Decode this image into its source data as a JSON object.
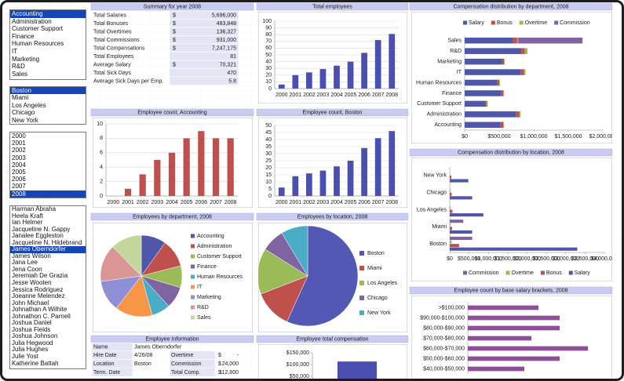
{
  "listboxes": [
    {
      "items": [
        "Accounting",
        "Administration",
        "Customer Support",
        "Finance",
        "Human Resources",
        "IT",
        "Marketing",
        "R&D",
        "Sales"
      ],
      "selected": 0
    },
    {
      "items": [
        "Boston",
        "Miami",
        "Los Angeles",
        "Chicago",
        "New York"
      ],
      "selected": 0
    },
    {
      "items": [
        "2000",
        "2001",
        "2002",
        "2003",
        "2004",
        "2005",
        "2006",
        "2007",
        "2008"
      ],
      "selected": 8
    },
    {
      "items": [
        "Harman Abraha",
        "Heela Kraft",
        "Ian Helmer",
        "Jacqueline N. Gappy",
        "Janalee Eggleston",
        "Jacqueline N. Hildebrand",
        "James Oberndorfer",
        "James Wilson",
        "Jana Lee",
        "Jena Coon",
        "Jeremiah De Grazia",
        "Jesse Wooten",
        "Jessica Rodriguez",
        "Joeanne Melendez",
        "John  Michael",
        "Johnathan A Wilhite",
        "Johnathon C. Parnell",
        "Joshua Daniel",
        "Joshua Fields",
        "Joshua Johnson",
        "Julia  Hegwood",
        "Julia Hughes",
        "Julie Yost",
        "Katherine Battah"
      ],
      "selected": 6
    }
  ],
  "summary": {
    "title": "Summary for year 2008",
    "rows": [
      [
        "Total Salaries",
        "$",
        "5,696,000"
      ],
      [
        "Total Bonuses",
        "$",
        "483,848"
      ],
      [
        "Total Overtimes",
        "$",
        "136,327"
      ],
      [
        "Total Commissions",
        "$",
        "931,000"
      ],
      [
        "Total Compensations",
        "$",
        "7,247,175"
      ],
      [
        "Total Employees",
        "81"
      ],
      [
        "Average Salary",
        "$",
        "70,321"
      ],
      [
        "Total Sick Days",
        "470"
      ],
      [
        "Average Sick Days per Emp.",
        "5.8"
      ]
    ]
  },
  "employee_info": {
    "title": "Employee Information",
    "rows": [
      [
        "Name",
        "James Oberndorfer"
      ],
      [
        "Hire Date",
        "4/26/08",
        "Overtime",
        "$",
        "-"
      ],
      [
        "Location",
        "Boston",
        "Commission",
        "$",
        "24,000"
      ],
      [
        "Term. Date",
        "Total Comp.",
        "$",
        "112,800"
      ]
    ]
  },
  "chart_data": [
    {
      "type": "bar",
      "title": "Total employees",
      "categories": [
        "2000",
        "2001",
        "2002",
        "2003",
        "2004",
        "2005",
        "2006",
        "2007",
        "2008"
      ],
      "values": [
        6,
        20,
        24,
        29,
        34,
        40,
        53,
        72,
        81
      ],
      "color": "#4a4fb0",
      "ylim": [
        0,
        100
      ],
      "yticks": [
        0,
        10,
        20,
        30,
        40,
        50,
        60,
        70,
        80,
        90,
        100
      ],
      "grid": true
    },
    {
      "type": "bar",
      "title": "Employee count, Accounting",
      "categories": [
        "2000",
        "2001",
        "2002",
        "2003",
        "2004",
        "2005",
        "2006",
        "2007",
        "2008"
      ],
      "values": [
        0,
        1,
        3,
        5,
        6,
        8,
        9,
        8,
        8
      ],
      "color": "#c0504d",
      "ylim": [
        0,
        10
      ],
      "yticks": [
        0,
        2,
        4,
        6,
        8,
        10
      ],
      "grid": true
    },
    {
      "type": "bar",
      "title": "Employee count, Boston",
      "categories": [
        "2000",
        "2001",
        "2002",
        "2003",
        "2004",
        "2005",
        "2006",
        "2007",
        "2008"
      ],
      "values": [
        6,
        14,
        16,
        18,
        21,
        25,
        34,
        41,
        46
      ],
      "color": "#4a4fb0",
      "ylim": [
        0,
        50
      ],
      "yticks": [
        0,
        5,
        10,
        15,
        20,
        25,
        30,
        35,
        40,
        45,
        50
      ],
      "grid": true
    },
    {
      "type": "bar",
      "horizontal": true,
      "stacked": true,
      "title": "Compensation distribution by department, 2008",
      "categories": [
        "Sales",
        "R&D",
        "Marketing",
        "IT",
        "Human Resources",
        "Finance",
        "Customer Support",
        "Administration",
        "Accounting"
      ],
      "series": [
        {
          "name": "Salary",
          "color": "#4f57a8",
          "values": [
            700000,
            820000,
            540000,
            810000,
            470000,
            530000,
            300000,
            740000,
            520000
          ]
        },
        {
          "name": "Bonus",
          "color": "#c0504d",
          "values": [
            60000,
            50000,
            30000,
            50000,
            30000,
            30000,
            20000,
            50000,
            40000
          ]
        },
        {
          "name": "Overtime",
          "color": "#9bbb59",
          "values": [
            15000,
            40000,
            10000,
            20000,
            10000,
            10000,
            15000,
            20000,
            10000
          ]
        },
        {
          "name": "Commission",
          "color": "#8064a2",
          "values": [
            931000,
            0,
            0,
            0,
            0,
            0,
            0,
            0,
            0
          ]
        }
      ],
      "xlim": [
        0,
        2000000
      ],
      "xticks": [
        {
          "value": 0,
          "label": "$0"
        },
        {
          "value": 500000,
          "label": "$500,000"
        },
        {
          "value": 1000000,
          "label": "$1,000,000"
        },
        {
          "value": 1500000,
          "label": "$1,500,000"
        },
        {
          "value": 2000000,
          "label": "$2,000,000"
        }
      ],
      "legend": "top",
      "grid": false
    },
    {
      "type": "bar",
      "horizontal": true,
      "stacked": false,
      "title": "Compensation distribution by location, 2008",
      "categories": [
        "New York",
        "Chicago",
        "Los Angeles",
        "Miami",
        "Boston"
      ],
      "series": [
        {
          "name": "Commission",
          "color": "#8064a2",
          "values": [
            0,
            0,
            0,
            350000,
            580000
          ]
        },
        {
          "name": "Overtime",
          "color": "#9bbb59",
          "values": [
            10000,
            20000,
            20000,
            20000,
            50000
          ]
        },
        {
          "name": "Bonus",
          "color": "#c0504d",
          "values": [
            40000,
            50000,
            70000,
            60000,
            240000
          ]
        },
        {
          "name": "Salary",
          "color": "#4f57a8",
          "values": [
            480000,
            580000,
            870000,
            580000,
            3300000
          ]
        }
      ],
      "xlim": [
        0,
        4000000
      ],
      "xticks": [
        {
          "value": 0,
          "label": "$0"
        },
        {
          "value": 500000,
          "label": "$500,000"
        },
        {
          "value": 1000000,
          "label": "$1,000,000"
        },
        {
          "value": 1500000,
          "label": "$1,500,000"
        },
        {
          "value": 2000000,
          "label": "$2,000,000"
        },
        {
          "value": 2500000,
          "label": "$2,500,000"
        },
        {
          "value": 3000000,
          "label": "$3,000,000"
        },
        {
          "value": 3500000,
          "label": "$3,500,000"
        },
        {
          "value": 4000000,
          "label": "$4,000,000"
        }
      ],
      "legend": "bottom",
      "grid": false
    },
    {
      "type": "bar",
      "horizontal": true,
      "title": "Employee count by base salary brackets, 2008",
      "categories": [
        ">$100,000",
        "$90,000-$100,000",
        "$80,000-$90,000",
        "$70,000-$80,000",
        "$60,000-$70,000",
        "$50,000-$60,000",
        "$40,000-$50,000"
      ],
      "values": [
        10,
        13,
        13,
        9,
        17,
        13,
        8
      ],
      "color": "#8e4f98",
      "xlim": [
        0,
        20
      ],
      "grid": false
    },
    {
      "type": "pie",
      "title": "Employees by department, 2008",
      "categories": [
        "Accounting",
        "Administration",
        "Customer Support",
        "Finance",
        "Human Resources",
        "IT",
        "Marketing",
        "R&D",
        "Sales"
      ],
      "values": [
        8,
        9,
        7,
        7,
        6,
        12,
        10,
        12,
        10
      ],
      "colors": [
        "#4f57a8",
        "#c0504d",
        "#9bbb59",
        "#8064a2",
        "#4bacc6",
        "#f79646",
        "#8f8fd8",
        "#d99694",
        "#c3d69b"
      ],
      "legend": "right"
    },
    {
      "type": "pie",
      "title": "Employees by location, 2008",
      "categories": [
        "Boston",
        "Miami",
        "Los Angeles",
        "Chicago",
        "New York"
      ],
      "values": [
        46,
        10,
        12,
        6,
        7
      ],
      "colors": [
        "#5358b4",
        "#c0504d",
        "#9bbb59",
        "#8064a2",
        "#4bacc6"
      ],
      "legend": "right"
    },
    {
      "type": "bar",
      "title": "Employee total compensation",
      "categories": [
        null
      ],
      "values": [
        112800
      ],
      "color": "#4a4fb0",
      "ylim": [
        0,
        150000
      ],
      "yticks": [
        {
          "value": 50000,
          "label": "$50,000"
        },
        {
          "value": 100000,
          "label": "$100,000"
        },
        {
          "value": 150000,
          "label": "$150,000"
        }
      ],
      "grid": false
    }
  ]
}
